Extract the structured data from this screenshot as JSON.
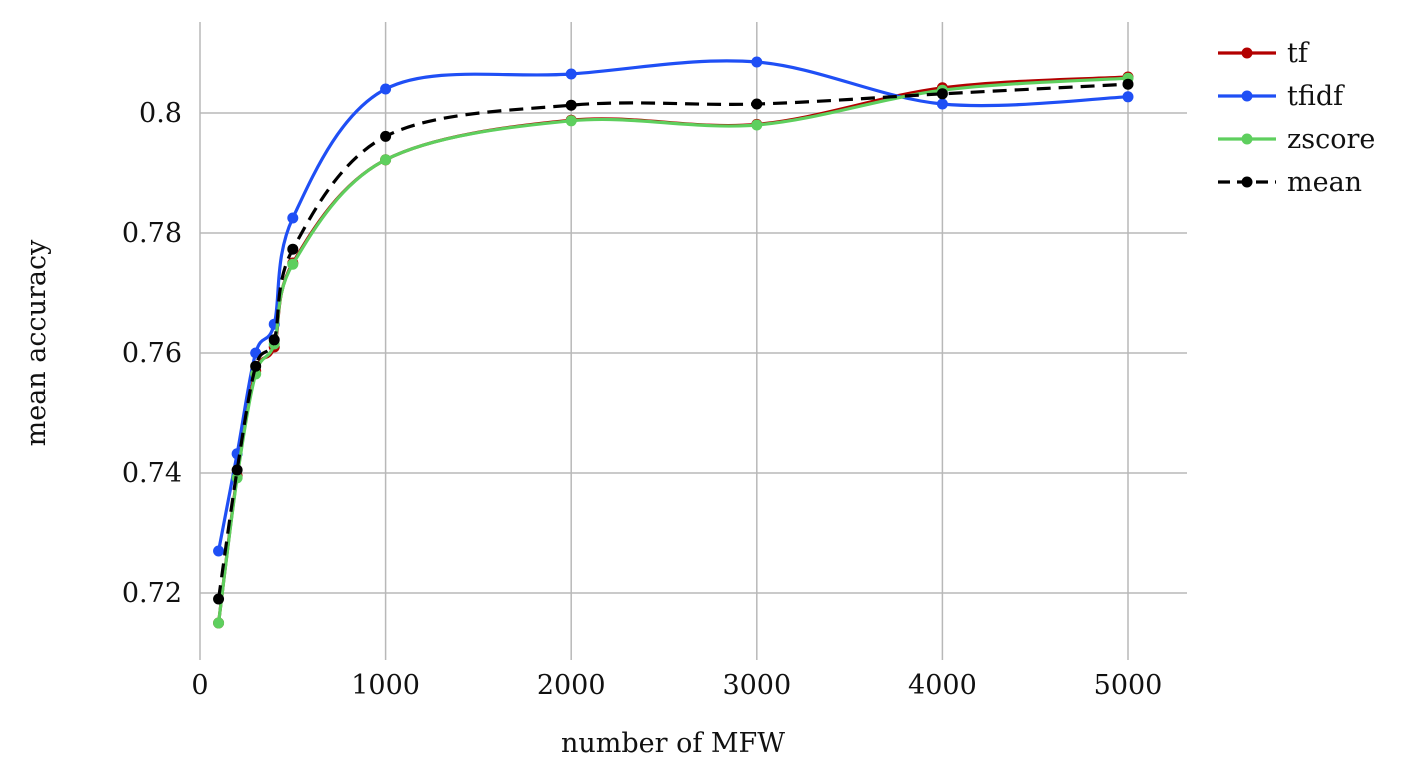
{
  "chart_data": {
    "type": "line",
    "title": "",
    "xlabel": "number of MFW",
    "ylabel": "mean accuracy",
    "xlim": [
      -50,
      5320
    ],
    "ylim": [
      0.7095,
      0.8155
    ],
    "xticks": [
      0,
      1000,
      2000,
      3000,
      4000,
      5000
    ],
    "xtick_labels": [
      "0",
      "1000",
      "2000",
      "3000",
      "4000",
      "5000"
    ],
    "yticks": [
      0.72,
      0.74,
      0.76,
      0.78,
      0.8
    ],
    "ytick_labels": [
      "0.72",
      "0.74",
      "0.76",
      "0.78",
      "0.8"
    ],
    "grid": true,
    "legend_position": "outside-top-right",
    "x": [
      100,
      200,
      300,
      400,
      500,
      1000,
      2000,
      3000,
      4000,
      5000
    ],
    "series": [
      {
        "name": "tf",
        "color": "#b30000",
        "dash": "solid",
        "values": [
          0.715,
          0.7395,
          0.757,
          0.761,
          0.775,
          0.7922,
          0.7988,
          0.7981,
          0.8042,
          0.806
        ]
      },
      {
        "name": "tfidf",
        "color": "#1f4ff5",
        "dash": "solid",
        "values": [
          0.727,
          0.7432,
          0.76,
          0.7648,
          0.7825,
          0.804,
          0.8065,
          0.8085,
          0.8015,
          0.8027
        ]
      },
      {
        "name": "zscore",
        "color": "#5ecf5e",
        "dash": "solid",
        "values": [
          0.715,
          0.7392,
          0.7565,
          0.7615,
          0.7748,
          0.7922,
          0.7987,
          0.798,
          0.8038,
          0.8058
        ]
      },
      {
        "name": "mean",
        "color": "#000000",
        "dash": "dashed",
        "values": [
          0.719,
          0.7405,
          0.7578,
          0.7622,
          0.7773,
          0.7961,
          0.8013,
          0.8015,
          0.8032,
          0.8048
        ]
      }
    ]
  }
}
